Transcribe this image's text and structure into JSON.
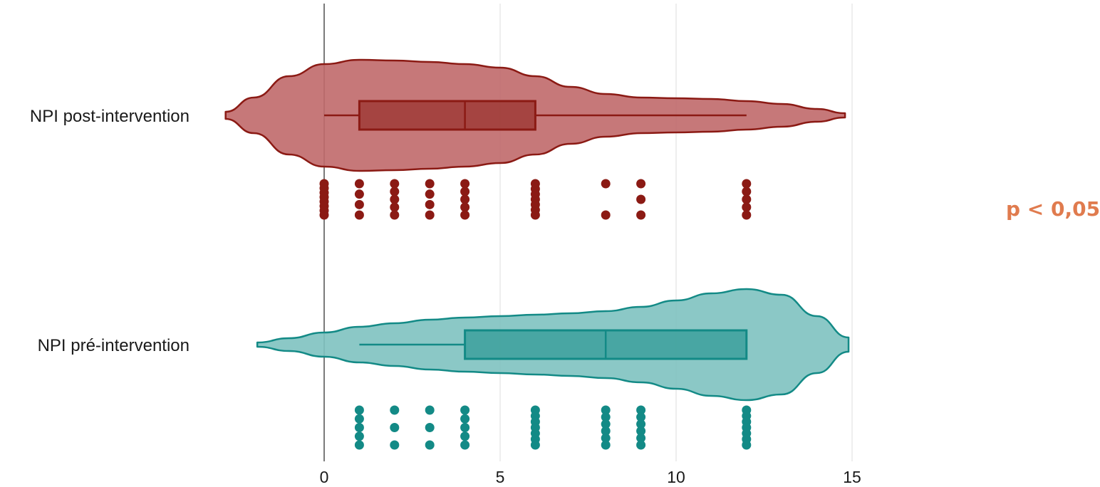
{
  "chart_data": {
    "type": "violin",
    "orientation": "horizontal",
    "xlim": [
      -3,
      15
    ],
    "xticks": [
      0,
      5,
      10,
      15
    ],
    "grid": "vertical",
    "annotation": {
      "text": "p < 0,05",
      "color": "#E07B4E"
    },
    "series": [
      {
        "name": "NPI post-intervention",
        "color": "#8B1A14",
        "fill": "#C0696A",
        "box": {
          "min": 0,
          "q1": 1,
          "median": 4,
          "q3": 6,
          "max": 12
        },
        "violin_extent": [
          -2.8,
          14.8
        ],
        "points": [
          {
            "x": 0,
            "n": 8
          },
          {
            "x": 1,
            "n": 4
          },
          {
            "x": 2,
            "n": 5
          },
          {
            "x": 3,
            "n": 4
          },
          {
            "x": 4,
            "n": 5
          },
          {
            "x": 6,
            "n": 7
          },
          {
            "x": 8,
            "n": 2
          },
          {
            "x": 9,
            "n": 3
          },
          {
            "x": 12,
            "n": 5
          }
        ]
      },
      {
        "name": "NPI pré-intervention",
        "color": "#138A86",
        "fill": "#7EC2C0",
        "box": {
          "min": 1,
          "q1": 4,
          "median": 8,
          "q3": 12,
          "max": 12
        },
        "violin_extent": [
          -1.9,
          14.9
        ],
        "points": [
          {
            "x": 1,
            "n": 5
          },
          {
            "x": 2,
            "n": 3
          },
          {
            "x": 3,
            "n": 3
          },
          {
            "x": 4,
            "n": 5
          },
          {
            "x": 6,
            "n": 7
          },
          {
            "x": 8,
            "n": 6
          },
          {
            "x": 9,
            "n": 6
          },
          {
            "x": 12,
            "n": 7
          }
        ]
      }
    ]
  }
}
